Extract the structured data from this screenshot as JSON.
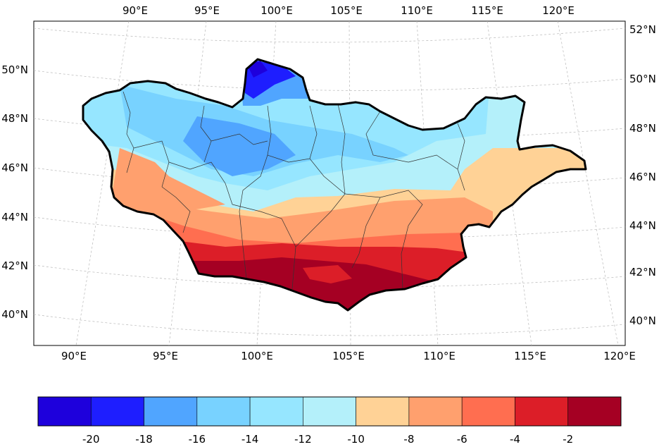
{
  "map": {
    "top_lon_labels": [
      "90°E",
      "95°E",
      "100°E",
      "105°E",
      "110°E",
      "115°E",
      "120°E"
    ],
    "bottom_lon_labels": [
      "90°E",
      "95°E",
      "100°E",
      "105°E",
      "110°E",
      "115°E",
      "120°E"
    ],
    "left_lat_labels": [
      "50°N",
      "48°N",
      "46°N",
      "44°N",
      "42°N",
      "40°N"
    ],
    "right_lat_labels": [
      "52°N",
      "50°N",
      "48°N",
      "46°N",
      "44°N",
      "42°N",
      "40°N"
    ],
    "border_color": "#000000"
  },
  "colorbar": {
    "colors": [
      "#1e00dc",
      "#1e1eff",
      "#50a5ff",
      "#78d2ff",
      "#96e6ff",
      "#b4f0fa",
      "#ffd296",
      "#ffa06e",
      "#ff6e50",
      "#dc1e28",
      "#a50023"
    ],
    "tick_labels": [
      "-20",
      "-18",
      "-16",
      "-14",
      "-12",
      "-10",
      "-8",
      "-6",
      "-4",
      "-2"
    ]
  }
}
